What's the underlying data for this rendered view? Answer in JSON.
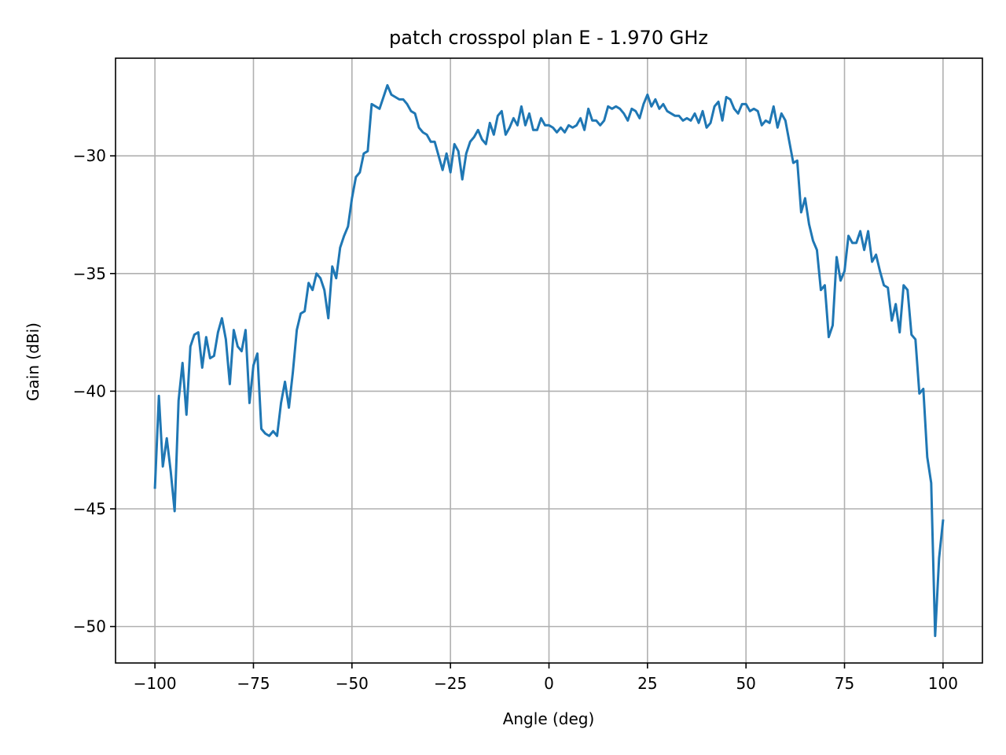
{
  "chart_data": {
    "type": "line",
    "title": "patch crosspol plan E - 1.970 GHz",
    "xlabel": "Angle (deg)",
    "ylabel": "Gain (dBi)",
    "xlim": [
      -110,
      110
    ],
    "ylim": [
      -51.55,
      -25.85
    ],
    "xticks": [
      -100,
      -75,
      -50,
      -25,
      0,
      25,
      50,
      75,
      100
    ],
    "xtick_labels": [
      "−100",
      "−75",
      "−50",
      "−25",
      "0",
      "25",
      "50",
      "75",
      "100"
    ],
    "yticks": [
      -50,
      -45,
      -40,
      -35,
      -30
    ],
    "ytick_labels": [
      "−50",
      "−45",
      "−40",
      "−35",
      "−30"
    ],
    "grid": true,
    "color": "#1f77b4",
    "series": [
      {
        "x": [
          -100,
          -99,
          -98,
          -97,
          -96,
          -95,
          -94,
          -93,
          -92,
          -91,
          -90,
          -89,
          -88,
          -87,
          -86,
          -85,
          -84,
          -83,
          -82,
          -81,
          -80,
          -79,
          -78,
          -77,
          -76,
          -75,
          -74,
          -73,
          -72,
          -71,
          -70,
          -69,
          -68,
          -67,
          -66,
          -65,
          -64,
          -63,
          -62,
          -61,
          -60,
          -59,
          -58,
          -57,
          -56,
          -55,
          -54,
          -53,
          -52,
          -51,
          -50,
          -49,
          -48,
          -47,
          -46,
          -45,
          -44,
          -43,
          -42,
          -41,
          -40,
          -39,
          -38,
          -37,
          -36,
          -35,
          -34,
          -33,
          -32,
          -31,
          -30,
          -29,
          -28,
          -27,
          -26,
          -25,
          -24,
          -23,
          -22,
          -21,
          -20,
          -19,
          -18,
          -17,
          -16,
          -15,
          -14,
          -13,
          -12,
          -11,
          -10,
          -9,
          -8,
          -7,
          -6,
          -5,
          -4,
          -3,
          -2,
          -1,
          0,
          1,
          2,
          3,
          4,
          5,
          6,
          7,
          8,
          9,
          10,
          11,
          12,
          13,
          14,
          15,
          16,
          17,
          18,
          19,
          20,
          21,
          22,
          23,
          24,
          25,
          26,
          27,
          28,
          29,
          30,
          31,
          32,
          33,
          34,
          35,
          36,
          37,
          38,
          39,
          40,
          41,
          42,
          43,
          44,
          45,
          46,
          47,
          48,
          49,
          50,
          51,
          52,
          53,
          54,
          55,
          56,
          57,
          58,
          59,
          60,
          61,
          62,
          63,
          64,
          65,
          66,
          67,
          68,
          69,
          70,
          71,
          72,
          73,
          74,
          75,
          76,
          77,
          78,
          79,
          80,
          81,
          82,
          83,
          84,
          85,
          86,
          87,
          88,
          89,
          90,
          91,
          92,
          93,
          94,
          95,
          96,
          97,
          98,
          99,
          100
        ],
        "y": [
          -44.1,
          -40.2,
          -43.2,
          -42.0,
          -43.4,
          -45.1,
          -40.4,
          -38.8,
          -41.0,
          -38.1,
          -37.6,
          -37.5,
          -39.0,
          -37.7,
          -38.6,
          -38.5,
          -37.5,
          -36.9,
          -37.8,
          -39.7,
          -37.4,
          -38.1,
          -38.3,
          -37.4,
          -40.5,
          -38.9,
          -38.4,
          -41.6,
          -41.8,
          -41.9,
          -41.7,
          -41.9,
          -40.5,
          -39.6,
          -40.7,
          -39.2,
          -37.4,
          -36.7,
          -36.6,
          -35.4,
          -35.7,
          -35.0,
          -35.2,
          -35.7,
          -36.9,
          -34.7,
          -35.2,
          -33.9,
          -33.4,
          -33.0,
          -31.8,
          -30.9,
          -30.7,
          -29.9,
          -29.8,
          -27.8,
          -27.9,
          -28.0,
          -27.5,
          -27.0,
          -27.4,
          -27.5,
          -27.6,
          -27.6,
          -27.8,
          -28.1,
          -28.2,
          -28.8,
          -29.0,
          -29.1,
          -29.4,
          -29.4,
          -30.0,
          -30.6,
          -29.9,
          -30.7,
          -29.5,
          -29.8,
          -31.0,
          -29.9,
          -29.4,
          -29.2,
          -28.9,
          -29.3,
          -29.5,
          -28.6,
          -29.1,
          -28.3,
          -28.1,
          -29.1,
          -28.8,
          -28.4,
          -28.7,
          -27.9,
          -28.7,
          -28.2,
          -28.9,
          -28.9,
          -28.4,
          -28.7,
          -28.7,
          -28.8,
          -29.0,
          -28.8,
          -29.0,
          -28.7,
          -28.8,
          -28.7,
          -28.4,
          -28.9,
          -28.0,
          -28.5,
          -28.5,
          -28.7,
          -28.5,
          -27.9,
          -28.0,
          -27.9,
          -28.0,
          -28.2,
          -28.5,
          -28.0,
          -28.1,
          -28.4,
          -27.8,
          -27.4,
          -27.9,
          -27.6,
          -28.0,
          -27.8,
          -28.1,
          -28.2,
          -28.3,
          -28.3,
          -28.5,
          -28.4,
          -28.5,
          -28.2,
          -28.6,
          -28.1,
          -28.8,
          -28.6,
          -27.9,
          -27.7,
          -28.5,
          -27.5,
          -27.6,
          -28.0,
          -28.2,
          -27.8,
          -27.8,
          -28.1,
          -28.0,
          -28.1,
          -28.7,
          -28.5,
          -28.6,
          -27.9,
          -28.8,
          -28.2,
          -28.5,
          -29.4,
          -30.3,
          -30.2,
          -32.4,
          -31.8,
          -32.9,
          -33.6,
          -34.0,
          -35.7,
          -35.5,
          -37.7,
          -37.2,
          -34.3,
          -35.3,
          -34.9,
          -33.4,
          -33.7,
          -33.7,
          -33.2,
          -34.0,
          -33.2,
          -34.5,
          -34.2,
          -34.9,
          -35.5,
          -35.6,
          -37.0,
          -36.3,
          -37.5,
          -35.5,
          -35.7,
          -37.6,
          -37.8,
          -40.1,
          -39.9,
          -42.8,
          -43.9,
          -50.4,
          -47.1,
          -45.5
        ]
      }
    ]
  }
}
